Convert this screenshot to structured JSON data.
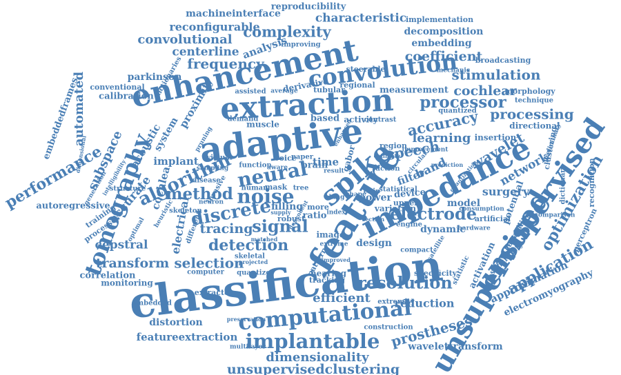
{
  "colors": {
    "word": "#4a7fb5",
    "background": "#ffffff"
  },
  "words": [
    "reproducibility",
    "machineinterface",
    "characteristic",
    "implementation",
    "reconfigurable",
    "decomposition",
    "complexity",
    "convolutional",
    "embedding",
    "enhancement",
    "centerline",
    "coefficient",
    "broadcasting",
    "analysis",
    "frequency",
    "convolution",
    "stimulation",
    "parkinson",
    "improving",
    "dictionaries",
    "steerable",
    "mechanic",
    "conventional",
    "calibration",
    "automated",
    "extraction",
    "measurement",
    "cochlear",
    "morphology",
    "processor",
    "technique",
    "embeddedframes",
    "proximity",
    "accuracy",
    "processing",
    "adaptive",
    "directional",
    "performance",
    "tomography",
    "acoustic",
    "system",
    "learning",
    "insertion",
    "speech",
    "wavelet",
    "subspace",
    "algorithm",
    "implant",
    "neural",
    "brain",
    "time",
    "gabor",
    "spike",
    "impedance",
    "unsupervised",
    "network",
    "clustering",
    "feature",
    "dictionary",
    "optimization",
    "recognition",
    "band",
    "filter",
    "surgery",
    "autoregressive",
    "accurate",
    "cochlea",
    "method",
    "noise",
    "discrete",
    "signal",
    "tracing",
    "electrode",
    "model",
    "potential",
    "electrical",
    "cepstral",
    "detection",
    "image",
    "design",
    "dynamic",
    "comparison",
    "perceptron",
    "transform",
    "selection",
    "application",
    "correlation",
    "monitoring",
    "classification",
    "resolution",
    "specificity",
    "statistic",
    "approximation",
    "electromyography",
    "efficient",
    "reduction",
    "embedded",
    "computational",
    "unsupervised",
    "distortion",
    "prostheses",
    "featureextraction",
    "implantable",
    "multilayer",
    "wavelettransform",
    "construction",
    "dimensionality",
    "unsupervisedclustering",
    "skeleton",
    "disease",
    "neuron",
    "filling",
    "robust",
    "virtual",
    "voice",
    "paper",
    "result",
    "mask",
    "human",
    "tree",
    "ratio",
    "power",
    "device",
    "more",
    "lung",
    "statistical",
    "hearing",
    "tracking",
    "pattern",
    "extreme",
    "compact",
    "satellite",
    "improvement",
    "region",
    "contrast",
    "based",
    "activity",
    "muscle",
    "demand",
    "pruning",
    "derivative",
    "regional",
    "tubular",
    "average",
    "assisted",
    "quantized",
    "circular",
    "variation",
    "computer",
    "quantizer",
    "extractor",
    "skeletal",
    "structure",
    "generation",
    "training",
    "processes",
    "optimal",
    "preliminary",
    "capability",
    "activation",
    "sensitivity",
    "artificial",
    "hardware",
    "consumption",
    "chip",
    "engine",
    "index",
    "shape",
    "action",
    "upper",
    "function",
    "aware",
    "invasive",
    "sampling",
    "heuristic",
    "different",
    "intelligibility",
    "dimensional",
    "extremity",
    "preservation",
    "projected",
    "improved",
    "matched",
    "enhanced",
    "estimate",
    "section",
    "supply",
    "dependent",
    "prediction",
    "quantization"
  ]
}
